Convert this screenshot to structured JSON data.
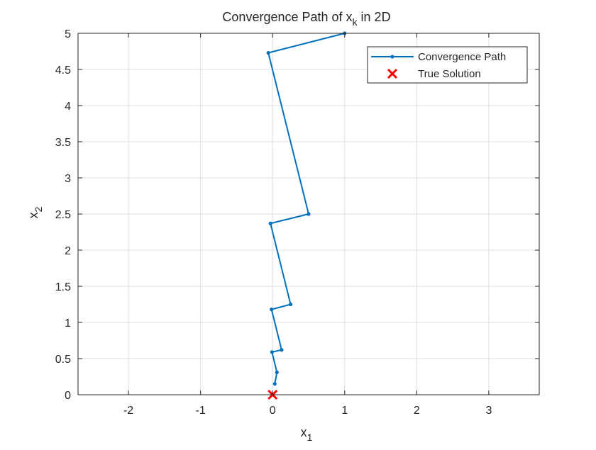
{
  "chart_data": {
    "type": "line",
    "title": "Convergence Path of x",
    "title_sub": "k",
    "title_suffix": " in 2D",
    "xlabel": "x",
    "xlabel_sub": "1",
    "ylabel": "x",
    "ylabel_sub": "2",
    "xlim": [
      -2.7,
      3.7
    ],
    "ylim": [
      0,
      5
    ],
    "xticks": [
      -2,
      -1,
      0,
      1,
      2,
      3
    ],
    "xtick_labels": [
      "-2",
      "-1",
      "0",
      "1",
      "2",
      "3"
    ],
    "yticks": [
      0,
      0.5,
      1,
      1.5,
      2,
      2.5,
      3,
      3.5,
      4,
      4.5,
      5
    ],
    "ytick_labels": [
      "0",
      "0.5",
      "1",
      "1.5",
      "2",
      "2.5",
      "3",
      "3.5",
      "4",
      "4.5",
      "5"
    ],
    "grid": true,
    "legend_position": "top-right",
    "series": [
      {
        "name": "Convergence Path",
        "color": "#0072BD",
        "marker": "dot",
        "x": [
          1.0,
          -0.06,
          0.5,
          -0.03,
          0.25,
          -0.015,
          0.125,
          -0.008,
          0.06,
          0.03
        ],
        "y": [
          5.0,
          4.73,
          2.5,
          2.37,
          1.25,
          1.18,
          0.62,
          0.59,
          0.31,
          0.15
        ]
      },
      {
        "name": "True Solution",
        "color": "#FF0000",
        "marker": "x",
        "x": [
          0
        ],
        "y": [
          0
        ]
      }
    ]
  }
}
